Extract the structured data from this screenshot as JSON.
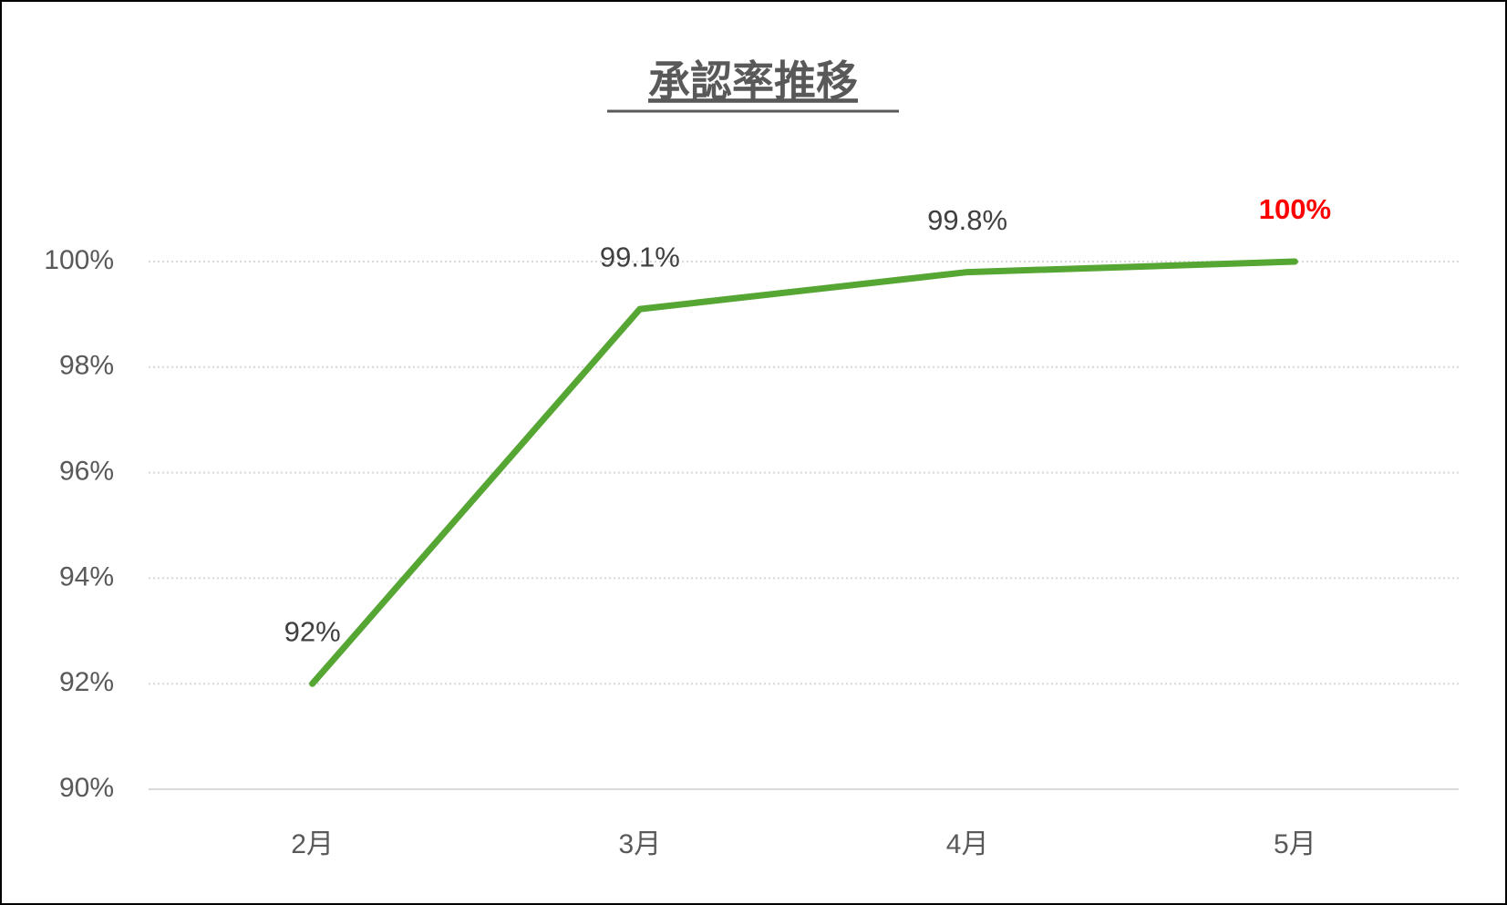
{
  "chart_data": {
    "type": "line",
    "title": "承認率推移",
    "categories": [
      "2月",
      "3月",
      "4月",
      "5月"
    ],
    "series": [
      {
        "name": "承認率",
        "color": "#55a632",
        "values": [
          92,
          99.1,
          99.8,
          100
        ],
        "value_labels": [
          "92%",
          "99.1%",
          "99.8%",
          "100%"
        ],
        "value_label_colors": [
          "#404040",
          "#404040",
          "#404040",
          "#ff0000"
        ],
        "value_label_bold": [
          false,
          false,
          false,
          true
        ]
      }
    ],
    "ylim": [
      90,
      100
    ],
    "yticks": [
      {
        "value": 90,
        "label": "90%"
      },
      {
        "value": 92,
        "label": "92%"
      },
      {
        "value": 94,
        "label": "94%"
      },
      {
        "value": 96,
        "label": "96%"
      },
      {
        "value": 98,
        "label": "98%"
      },
      {
        "value": 100,
        "label": "100%"
      }
    ],
    "grid": true
  }
}
